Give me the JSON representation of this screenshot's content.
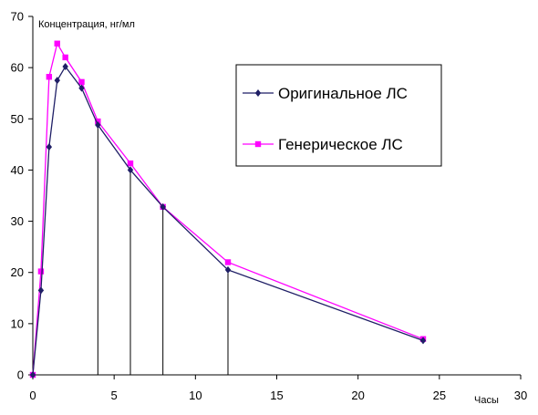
{
  "chart_data": {
    "type": "line",
    "title": "",
    "ylabel": "Концентрация, нг/мл",
    "xlabel": "Часы",
    "xlim": [
      0,
      30
    ],
    "ylim": [
      0,
      70
    ],
    "x_ticks": [
      0,
      5,
      10,
      15,
      20,
      25,
      30
    ],
    "y_ticks": [
      0,
      10,
      20,
      30,
      40,
      50,
      60,
      70
    ],
    "grid": false,
    "legend_position": "top-right",
    "drop_lines_at_x": [
      4,
      6,
      8,
      12
    ],
    "series": [
      {
        "name": "Оригинальное ЛС",
        "color": "#1f1f66",
        "marker": "diamond",
        "x": [
          0,
          0.5,
          1,
          1.5,
          2,
          3,
          4,
          6,
          8,
          12,
          24
        ],
        "y": [
          0,
          16.5,
          44.5,
          57.5,
          60.2,
          56,
          48.8,
          40,
          32.8,
          20.5,
          6.7
        ]
      },
      {
        "name": "Генерическое ЛС",
        "color": "#ff00ff",
        "marker": "square",
        "x": [
          0,
          0.5,
          1,
          1.5,
          2,
          3,
          4,
          6,
          8,
          12,
          24
        ],
        "y": [
          0,
          20.2,
          58.2,
          64.7,
          62,
          57.2,
          49.5,
          41.3,
          32.8,
          22,
          7
        ]
      }
    ]
  }
}
